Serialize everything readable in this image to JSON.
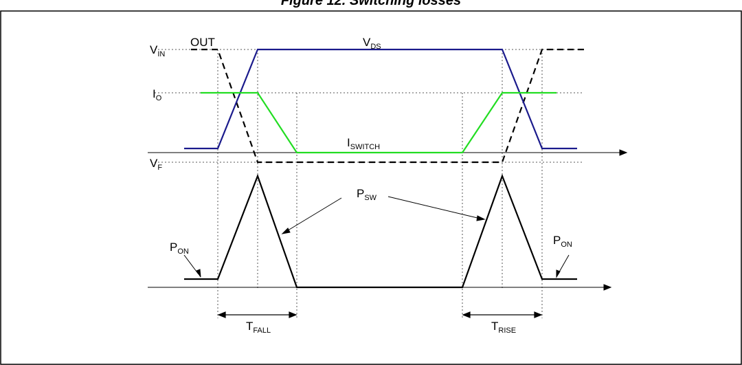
{
  "figure": {
    "caption": "Figure 12. Switching losses"
  },
  "labels": {
    "vin": {
      "main": "V",
      "sub": "IN"
    },
    "io": {
      "main": "I",
      "sub": "O"
    },
    "vf": {
      "main": "V",
      "sub": "F"
    },
    "out": "OUT",
    "vds": {
      "main": "V",
      "sub": "DS"
    },
    "iswitch": {
      "main": "I",
      "sub": "SWITCH"
    },
    "psw": {
      "main": "P",
      "sub": "SW"
    },
    "pon_left": {
      "main": "P",
      "sub": "ON"
    },
    "pon_right": {
      "main": "P",
      "sub": "ON"
    },
    "tfall": {
      "main": "T",
      "sub": "FALL"
    },
    "trise": {
      "main": "T",
      "sub": "RISE"
    }
  },
  "colors": {
    "vds": "#1a1a8c",
    "iswitch": "#22dd22",
    "out": "#000000",
    "power": "#000000",
    "guides": "#555555"
  }
}
